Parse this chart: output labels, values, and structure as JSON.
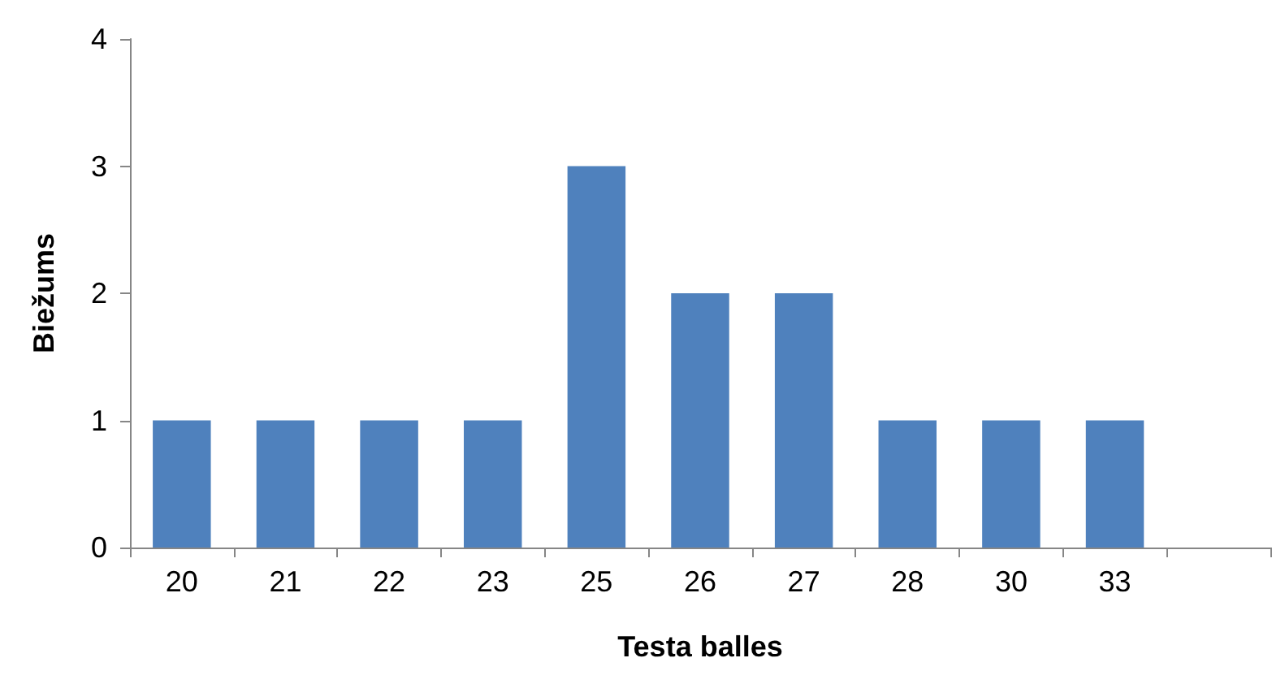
{
  "chart_data": {
    "type": "bar",
    "xlabel": "Testa balles",
    "ylabel": "Biežums",
    "categories": [
      "20",
      "21",
      "22",
      "23",
      "25",
      "26",
      "27",
      "28",
      "30",
      "33",
      null
    ],
    "values": [
      1,
      1,
      1,
      1,
      3,
      2,
      2,
      1,
      1,
      1,
      null
    ],
    "color": "#4f81bd",
    "ylim": [
      0,
      4
    ],
    "yticks": [
      0,
      1,
      2,
      3,
      4
    ],
    "grid": false
  }
}
